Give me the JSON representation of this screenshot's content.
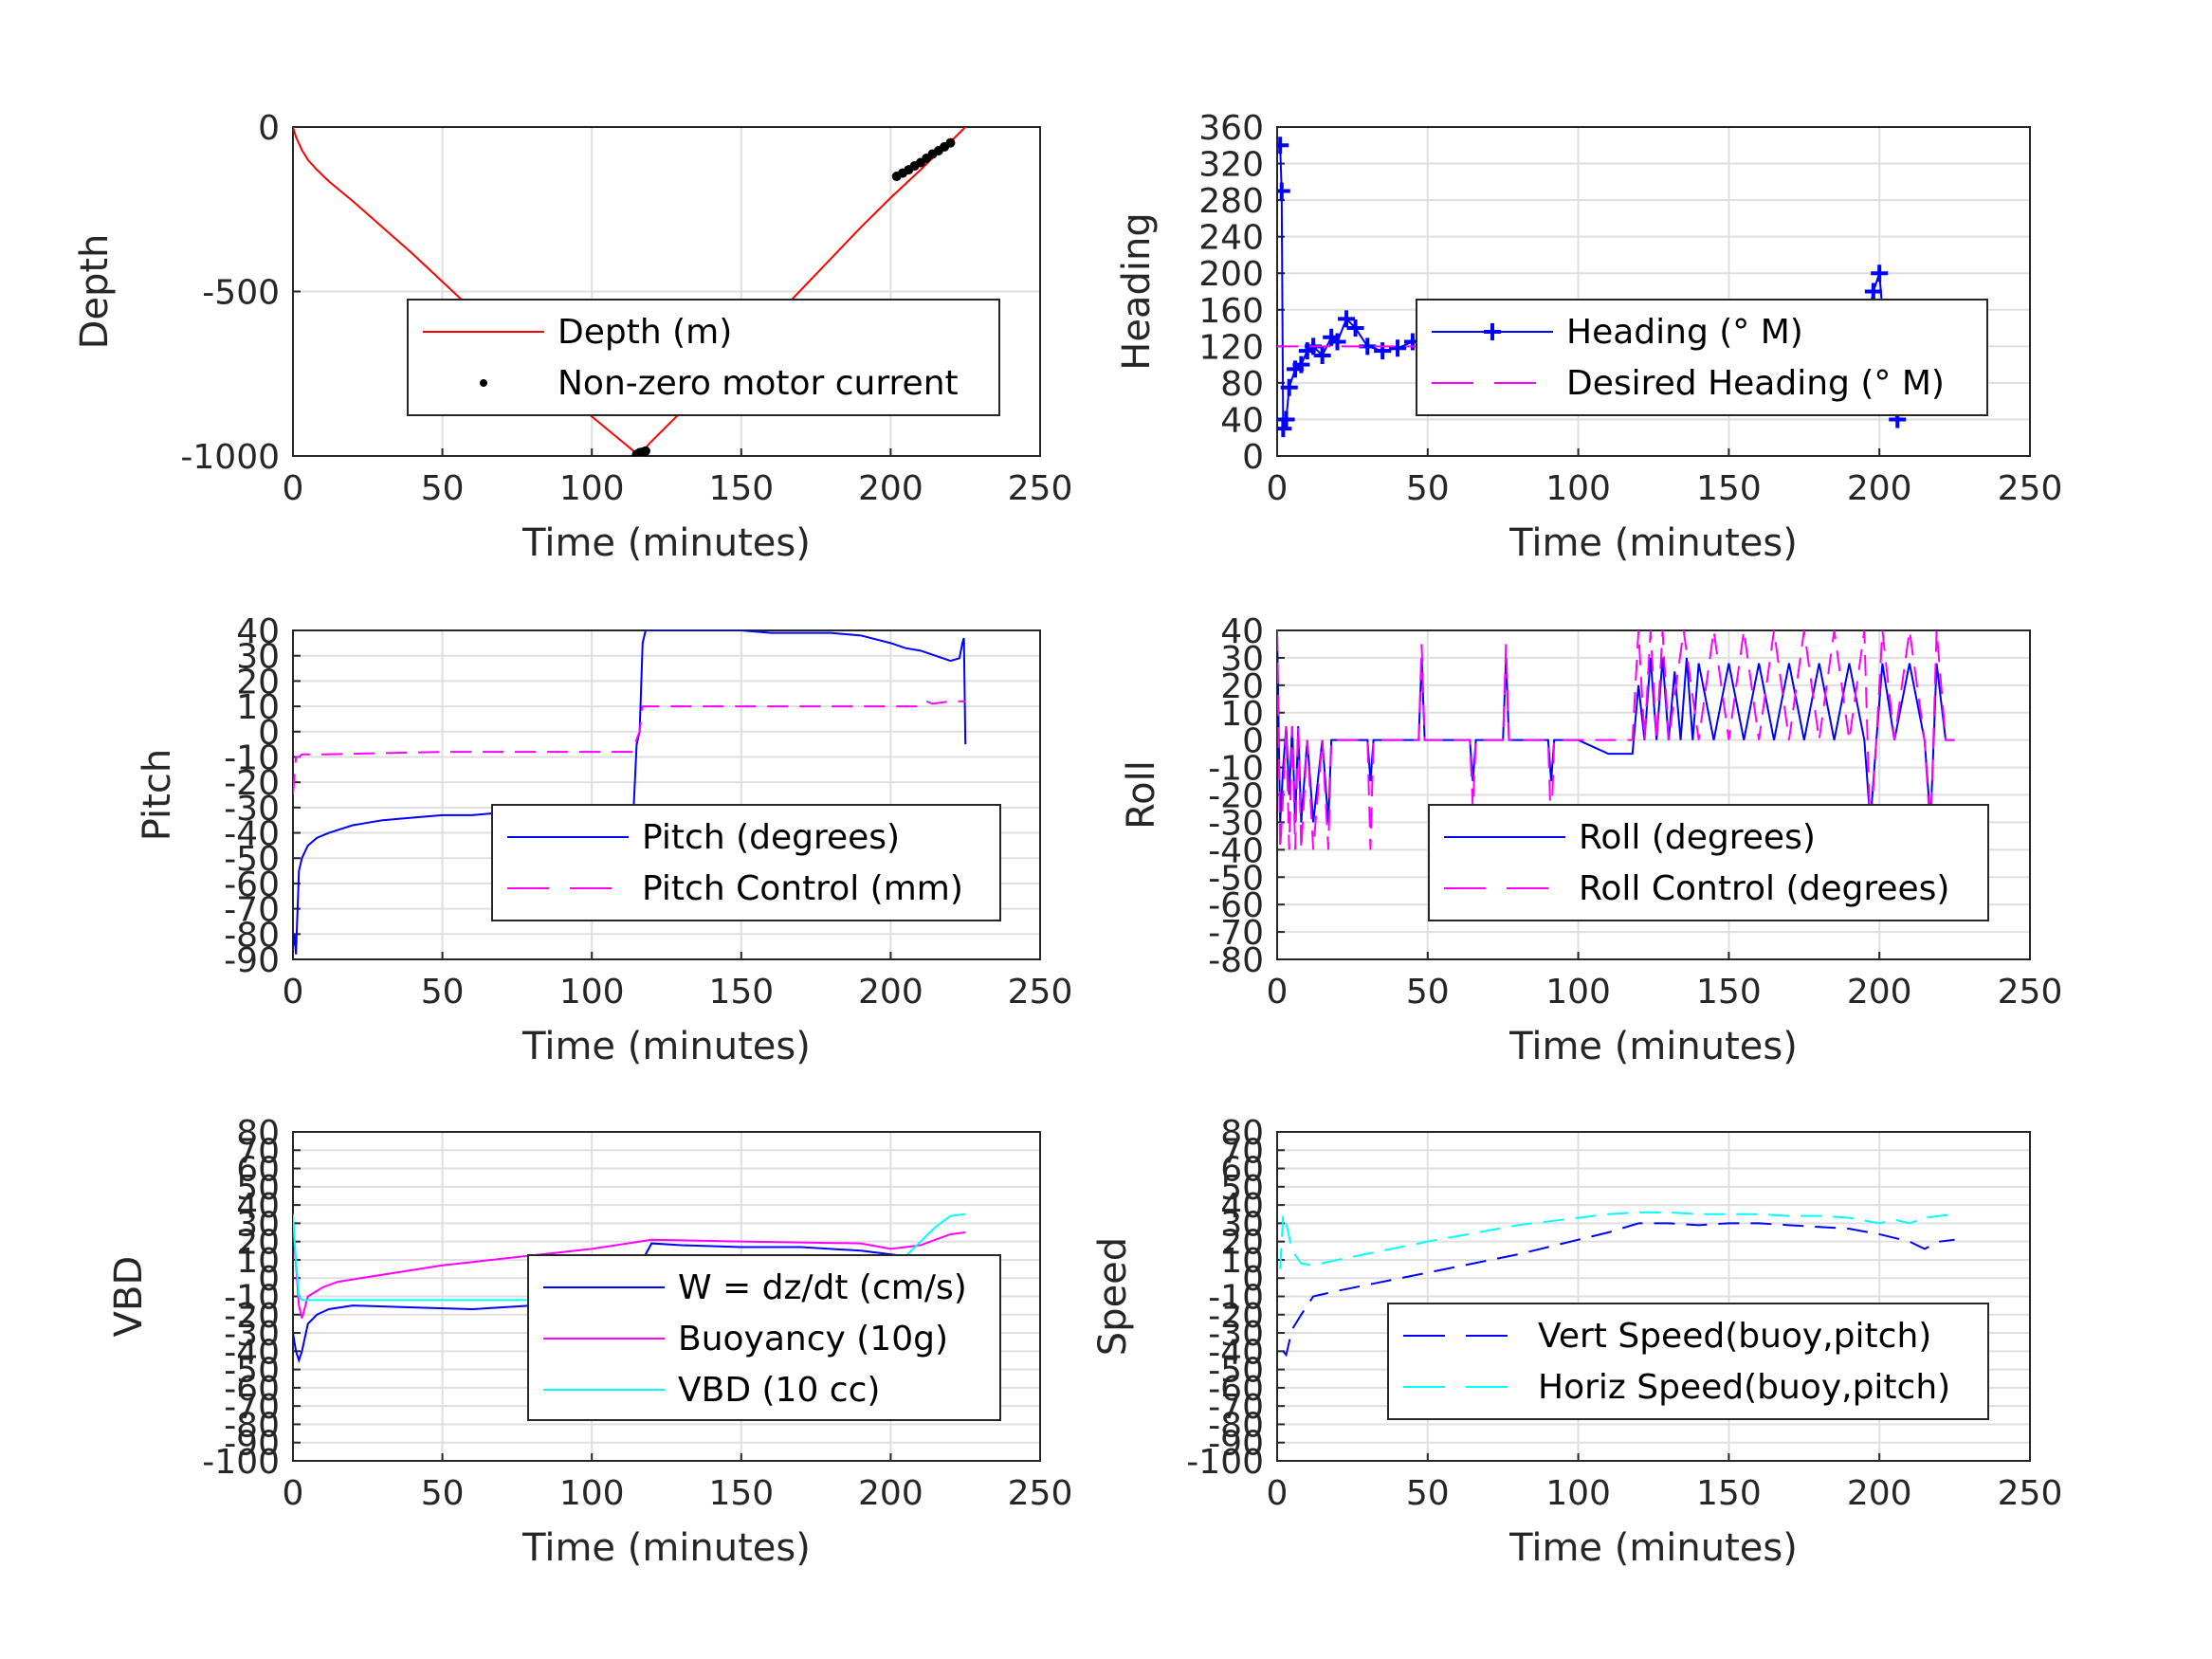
{
  "chart_data": [
    {
      "type": "line",
      "ylabel": "Depth",
      "xlabel": "Time (minutes)",
      "xlim": [
        0,
        250
      ],
      "ylim": [
        -1000,
        0
      ],
      "xticks": [
        "0",
        "50",
        "100",
        "150",
        "200",
        "250"
      ],
      "yticks": [
        "-1000",
        "-500",
        "0"
      ],
      "grid": true,
      "legend_position": "bottom-right",
      "series": [
        {
          "name": "Depth (m)",
          "color": "#ff0000",
          "style": "solid",
          "x": [
            0,
            1,
            3,
            5,
            8,
            12,
            20,
            30,
            40,
            50,
            60,
            70,
            80,
            90,
            100,
            110,
            114,
            115,
            117,
            118,
            120,
            130,
            140,
            150,
            160,
            170,
            180,
            190,
            200,
            210,
            215,
            220,
            225
          ],
          "y": [
            0,
            -30,
            -70,
            -100,
            -130,
            -165,
            -225,
            -305,
            -385,
            -470,
            -555,
            -640,
            -720,
            -800,
            -880,
            -955,
            -985,
            -993,
            -985,
            -975,
            -955,
            -865,
            -775,
            -685,
            -590,
            -495,
            -400,
            -305,
            -215,
            -130,
            -85,
            -45,
            0
          ]
        },
        {
          "name": "Non-zero motor current",
          "color": "#000000",
          "style": "points",
          "x": [
            115,
            116,
            117,
            118,
            202,
            204,
            206,
            208,
            210,
            212,
            214,
            216,
            218,
            220
          ],
          "y": [
            -995,
            -990,
            -988,
            -985,
            -150,
            -140,
            -130,
            -118,
            -108,
            -95,
            -82,
            -72,
            -60,
            -48
          ]
        }
      ]
    },
    {
      "type": "line",
      "ylabel": "Heading",
      "xlabel": "Time (minutes)",
      "xlim": [
        0,
        250
      ],
      "ylim": [
        0,
        360
      ],
      "xticks": [
        "0",
        "50",
        "100",
        "150",
        "200",
        "250"
      ],
      "yticks": [
        "0",
        "40",
        "80",
        "120",
        "160",
        "200",
        "240",
        "280",
        "320",
        "360"
      ],
      "grid": true,
      "legend_position": "upper-right",
      "series": [
        {
          "name": "Heading (° M)",
          "color": "#0000ff",
          "style": "plus-markers",
          "x": [
            1,
            1.5,
            2,
            3,
            4,
            6,
            8,
            10,
            12,
            15,
            18,
            20,
            23,
            26,
            30,
            35,
            40,
            45,
            50,
            55,
            60,
            65,
            70,
            75,
            80,
            85,
            90,
            95,
            100,
            105,
            110,
            115,
            118,
            120,
            123,
            126,
            129,
            132,
            135,
            140,
            145,
            150,
            155,
            160,
            165,
            170,
            175,
            180,
            185,
            190,
            193,
            196,
            198,
            200,
            202,
            204,
            206,
            208,
            210,
            213,
            216,
            219,
            222,
            225
          ],
          "y": [
            340,
            290,
            30,
            40,
            75,
            95,
            100,
            115,
            120,
            110,
            130,
            125,
            150,
            140,
            120,
            115,
            118,
            125,
            130,
            120,
            125,
            118,
            122,
            128,
            125,
            115,
            120,
            112,
            118,
            125,
            120,
            110,
            125,
            90,
            120,
            70,
            130,
            95,
            80,
            118,
            105,
            85,
            120,
            90,
            115,
            100,
            80,
            118,
            105,
            95,
            70,
            150,
            180,
            200,
            120,
            55,
            40,
            100,
            130,
            90,
            120,
            75,
            130,
            115
          ]
        },
        {
          "name": "Desired Heading (° M)",
          "color": "#ff00ff",
          "style": "dashed",
          "x": [
            0,
            225
          ],
          "y": [
            120,
            120
          ]
        }
      ]
    },
    {
      "type": "line",
      "ylabel": "Pitch",
      "xlabel": "Time (minutes)",
      "xlim": [
        0,
        250
      ],
      "ylim": [
        -90,
        40
      ],
      "xticks": [
        "0",
        "50",
        "100",
        "150",
        "200",
        "250"
      ],
      "yticks": [
        "-90",
        "-80",
        "-70",
        "-60",
        "-50",
        "-40",
        "-30",
        "-20",
        "-10",
        "0",
        "10",
        "20",
        "30",
        "40"
      ],
      "grid": true,
      "legend_position": "center-right",
      "series": [
        {
          "name": "Pitch (degrees)",
          "color": "#0000ff",
          "style": "solid",
          "x": [
            0,
            0.5,
            1,
            2,
            3,
            5,
            8,
            12,
            20,
            30,
            40,
            50,
            60,
            70,
            80,
            90,
            100,
            110,
            114,
            115,
            116,
            117,
            118,
            120,
            130,
            140,
            150,
            160,
            170,
            180,
            190,
            200,
            205,
            210,
            215,
            220,
            223,
            224,
            224.5,
            225
          ],
          "y": [
            -85,
            -80,
            -88,
            -55,
            -50,
            -45,
            -42,
            -40,
            -37,
            -35,
            -34,
            -33,
            -33,
            -32,
            -32,
            -32,
            -32,
            -31,
            -30,
            -5,
            0,
            35,
            40,
            40,
            40,
            40,
            40,
            39,
            39,
            39,
            38,
            35,
            33,
            32,
            30,
            28,
            29,
            35,
            37,
            -5
          ]
        },
        {
          "name": "Pitch Control (mm)",
          "color": "#ff00ff",
          "style": "dashed",
          "x": [
            0,
            1,
            2,
            3,
            10,
            50,
            100,
            114,
            115,
            116,
            117,
            120,
            150,
            180,
            210,
            212,
            214,
            220,
            225
          ],
          "y": [
            -25,
            -10,
            -10,
            -9,
            -9,
            -8,
            -8,
            -8,
            -3,
            0,
            10,
            10,
            10,
            10,
            10,
            12,
            11,
            12,
            12
          ]
        }
      ]
    },
    {
      "type": "line",
      "ylabel": "Roll",
      "xlabel": "Time (minutes)",
      "xlim": [
        0,
        250
      ],
      "ylim": [
        -80,
        40
      ],
      "xticks": [
        "0",
        "50",
        "100",
        "150",
        "200",
        "250"
      ],
      "yticks": [
        "-80",
        "-70",
        "-60",
        "-50",
        "-40",
        "-30",
        "-20",
        "-10",
        "0",
        "10",
        "20",
        "30",
        "40"
      ],
      "grid": true,
      "legend_position": "center-right",
      "series": [
        {
          "name": "Roll (degrees)",
          "color": "#0000ff",
          "style": "solid",
          "x": [
            0,
            1,
            2,
            3,
            4,
            5,
            6,
            7,
            8,
            10,
            12,
            15,
            17,
            18,
            25,
            30,
            31,
            32,
            40,
            47,
            48,
            49,
            60,
            64,
            65,
            66,
            75,
            76,
            77,
            90,
            91,
            92,
            100,
            110,
            118,
            120,
            122,
            124,
            126,
            128,
            130,
            132,
            134,
            136,
            138,
            140,
            145,
            150,
            155,
            160,
            165,
            170,
            175,
            180,
            185,
            190,
            195,
            197,
            199,
            201,
            205,
            210,
            215,
            217,
            219,
            222,
            225
          ],
          "y": [
            40,
            -30,
            -10,
            5,
            -20,
            5,
            -30,
            5,
            -30,
            0,
            -30,
            0,
            -30,
            0,
            0,
            0,
            -15,
            0,
            0,
            0,
            30,
            0,
            0,
            0,
            -15,
            0,
            0,
            30,
            0,
            0,
            -15,
            0,
            0,
            -5,
            -5,
            20,
            0,
            30,
            0,
            30,
            0,
            25,
            0,
            30,
            0,
            28,
            0,
            28,
            0,
            28,
            0,
            28,
            0,
            28,
            0,
            28,
            0,
            -30,
            0,
            28,
            0,
            28,
            0,
            -30,
            28,
            0,
            0
          ]
        },
        {
          "name": "Roll Control (degrees)",
          "color": "#ff00ff",
          "style": "dashed",
          "x": [
            0,
            1,
            2,
            3,
            4,
            5,
            6,
            7,
            8,
            10,
            12,
            15,
            17,
            18,
            30,
            31,
            32,
            47,
            48,
            49,
            64,
            65,
            66,
            75,
            76,
            77,
            90,
            91,
            92,
            118,
            120,
            122,
            124,
            126,
            128,
            130,
            135,
            140,
            145,
            150,
            155,
            160,
            165,
            170,
            175,
            180,
            185,
            190,
            195,
            197,
            199,
            201,
            205,
            210,
            215,
            217,
            219,
            222,
            225
          ],
          "y": [
            40,
            -40,
            -20,
            5,
            -40,
            5,
            -40,
            5,
            -40,
            0,
            -40,
            0,
            -40,
            0,
            0,
            -40,
            0,
            0,
            35,
            0,
            0,
            -25,
            0,
            0,
            35,
            0,
            0,
            -35,
            0,
            0,
            40,
            0,
            40,
            0,
            40,
            0,
            40,
            0,
            40,
            0,
            40,
            0,
            40,
            0,
            40,
            0,
            40,
            0,
            40,
            -35,
            0,
            40,
            0,
            40,
            0,
            -35,
            40,
            0,
            0
          ]
        }
      ]
    },
    {
      "type": "line",
      "ylabel": "VBD",
      "xlabel": "Time (minutes)",
      "xlim": [
        0,
        250
      ],
      "ylim": [
        -100,
        80
      ],
      "xticks": [
        "0",
        "50",
        "100",
        "150",
        "200",
        "250"
      ],
      "yticks": [
        "-100",
        "-90",
        "-80",
        "-70",
        "-60",
        "-50",
        "-40",
        "-30",
        "-20",
        "-10",
        "0",
        "10",
        "20",
        "30",
        "40",
        "50",
        "60",
        "70",
        "80"
      ],
      "grid": true,
      "legend_position": "center-right",
      "series": [
        {
          "name": "W = dz/dt (cm/s)",
          "color": "#0000ff",
          "style": "solid",
          "x": [
            0,
            1,
            2,
            3,
            5,
            8,
            12,
            20,
            40,
            60,
            80,
            100,
            110,
            114,
            115,
            117,
            120,
            130,
            150,
            170,
            190,
            200,
            205,
            210,
            215,
            220,
            225
          ],
          "y": [
            -30,
            -40,
            -45,
            -40,
            -25,
            -20,
            -17,
            -15,
            -16,
            -17,
            -15,
            -16,
            -15,
            -14,
            0,
            10,
            19,
            18,
            17,
            17,
            15,
            13,
            12,
            11,
            10,
            9,
            8
          ]
        },
        {
          "name": "Buoyancy (10g)",
          "color": "#ff00ff",
          "style": "solid",
          "x": [
            0,
            2,
            3,
            5,
            10,
            15,
            50,
            100,
            120,
            150,
            190,
            200,
            205,
            210,
            215,
            220,
            225
          ],
          "y": [
            30,
            -15,
            -22,
            -10,
            -5,
            -2,
            7,
            16,
            21,
            20,
            19,
            16,
            17,
            18,
            21,
            24,
            25
          ]
        },
        {
          "name": "VBD (10 cc)",
          "color": "#00ffff",
          "style": "solid",
          "x": [
            0,
            1,
            2,
            3,
            5,
            10,
            50,
            100,
            114,
            116,
            120,
            150,
            190,
            200,
            205,
            210,
            215,
            220,
            225
          ],
          "y": [
            35,
            10,
            -10,
            -12,
            -12,
            -12,
            -12,
            -12,
            -12,
            5,
            8,
            8,
            8,
            9,
            12,
            20,
            28,
            34,
            35
          ]
        }
      ]
    },
    {
      "type": "line",
      "ylabel": "Speed",
      "xlabel": "Time (minutes)",
      "xlim": [
        0,
        250
      ],
      "ylim": [
        -100,
        80
      ],
      "xticks": [
        "0",
        "50",
        "100",
        "150",
        "200",
        "250"
      ],
      "yticks": [
        "-100",
        "-90",
        "-80",
        "-70",
        "-60",
        "-50",
        "-40",
        "-30",
        "-20",
        "-10",
        "0",
        "10",
        "20",
        "30",
        "40",
        "50",
        "60",
        "70",
        "80"
      ],
      "grid": true,
      "legend_position": "center-right",
      "series": [
        {
          "name": "Vert Speed(buoy,pitch)",
          "color": "#0000ff",
          "style": "dashed",
          "x": [
            2,
            3,
            5,
            8,
            12,
            20,
            50,
            80,
            110,
            120,
            130,
            140,
            150,
            160,
            170,
            180,
            190,
            200,
            205,
            210,
            215,
            220,
            225
          ],
          "y": [
            -40,
            -42,
            -28,
            -20,
            -10,
            -7,
            3,
            13,
            25,
            30,
            30,
            29,
            30,
            30,
            29,
            28,
            27,
            24,
            22,
            20,
            16,
            20,
            21
          ]
        },
        {
          "name": "Horiz Speed(buoy,pitch)",
          "color": "#00ffff",
          "style": "dashed",
          "x": [
            1,
            2,
            3,
            5,
            8,
            12,
            20,
            50,
            80,
            110,
            120,
            130,
            140,
            150,
            160,
            170,
            180,
            190,
            200,
            205,
            210,
            215,
            220,
            225
          ],
          "y": [
            5,
            35,
            30,
            15,
            8,
            7,
            10,
            20,
            29,
            35,
            36,
            36,
            35,
            35,
            35,
            34,
            34,
            33,
            30,
            32,
            30,
            33,
            34,
            35
          ]
        }
      ]
    }
  ]
}
